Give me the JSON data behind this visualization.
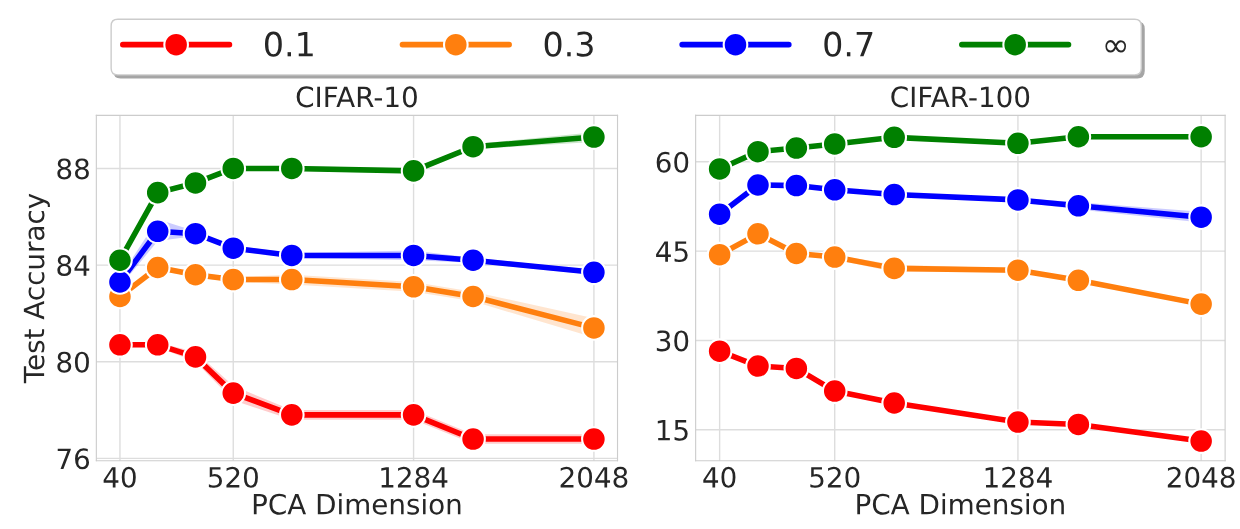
{
  "chart_data": [
    {
      "type": "line",
      "title": "CIFAR-10",
      "xlabel": "PCA Dimension",
      "ylabel": "Test Accuracy",
      "x": [
        40,
        200,
        360,
        520,
        768,
        1284,
        1536,
        2048
      ],
      "xlim": [
        -60,
        2148
      ],
      "xticks": [
        40,
        520,
        1284,
        2048
      ],
      "ylim": [
        75.9,
        90.2
      ],
      "yticks": [
        76,
        80,
        84,
        88
      ],
      "grid": true,
      "legend": "top",
      "marker": "circle",
      "line_style": "solid",
      "series": [
        {
          "name": "0.1",
          "color": "#ff0000",
          "values": [
            80.7,
            80.7,
            80.2,
            78.7,
            77.8,
            77.8,
            76.8,
            76.8
          ],
          "lower": [
            80.6,
            80.6,
            80.0,
            78.4,
            77.6,
            77.6,
            76.6,
            76.6
          ],
          "upper": [
            80.8,
            80.8,
            80.4,
            79.0,
            78.0,
            78.0,
            77.0,
            77.0
          ]
        },
        {
          "name": "0.3",
          "color": "#ff7f0e",
          "values": [
            82.7,
            83.9,
            83.6,
            83.4,
            83.4,
            83.1,
            82.7,
            81.4
          ],
          "lower": [
            82.6,
            83.8,
            83.5,
            83.3,
            83.2,
            82.9,
            82.5,
            81.0
          ],
          "upper": [
            82.8,
            84.0,
            83.7,
            83.5,
            83.6,
            83.3,
            82.9,
            81.8
          ]
        },
        {
          "name": "0.7",
          "color": "#0000ff",
          "values": [
            83.3,
            85.4,
            85.3,
            84.7,
            84.4,
            84.4,
            84.2,
            83.7
          ],
          "lower": [
            83.1,
            85.0,
            85.2,
            84.6,
            84.3,
            84.2,
            84.1,
            83.6
          ],
          "upper": [
            83.5,
            85.9,
            85.4,
            84.8,
            84.5,
            84.6,
            84.3,
            83.8
          ]
        },
        {
          "name": "∞",
          "color": "#008000",
          "values": [
            84.2,
            87.0,
            87.4,
            88.0,
            88.0,
            87.9,
            88.9,
            89.3
          ],
          "lower": [
            84.1,
            86.9,
            87.3,
            87.9,
            87.9,
            87.8,
            88.8,
            89.1
          ],
          "upper": [
            84.3,
            87.1,
            87.5,
            88.1,
            88.1,
            88.0,
            89.0,
            89.5
          ]
        }
      ]
    },
    {
      "type": "line",
      "title": "CIFAR-100",
      "xlabel": "PCA Dimension",
      "x": [
        40,
        200,
        360,
        520,
        768,
        1284,
        1536,
        2048
      ],
      "xlim": [
        -60,
        2148
      ],
      "xticks": [
        40,
        520,
        1284,
        2048
      ],
      "ylim": [
        9.8,
        67.8
      ],
      "yticks": [
        15,
        30,
        45,
        60
      ],
      "grid": true,
      "legend": "top",
      "marker": "circle",
      "line_style": "solid",
      "series": [
        {
          "name": "0.1",
          "color": "#ff0000",
          "values": [
            28.2,
            25.7,
            25.3,
            21.5,
            19.5,
            16.3,
            15.9,
            13.1
          ]
        },
        {
          "name": "0.3",
          "color": "#ff7f0e",
          "values": [
            44.4,
            47.9,
            44.6,
            44.0,
            42.1,
            41.8,
            40.1,
            36.1
          ],
          "lower": [
            44.2,
            47.6,
            44.3,
            43.6,
            41.5,
            41.5,
            39.8,
            35.7
          ],
          "upper": [
            44.6,
            48.2,
            44.9,
            44.4,
            42.7,
            42.1,
            40.4,
            36.5
          ]
        },
        {
          "name": "0.7",
          "color": "#0000ff",
          "values": [
            51.2,
            56.1,
            56.0,
            55.3,
            54.5,
            53.6,
            52.6,
            50.7
          ],
          "lower": [
            51.0,
            55.8,
            55.8,
            55.0,
            54.2,
            53.3,
            52.0,
            49.8
          ],
          "upper": [
            51.4,
            56.4,
            56.2,
            55.6,
            54.8,
            53.9,
            53.2,
            51.6
          ]
        },
        {
          "name": "∞",
          "color": "#008000",
          "values": [
            58.8,
            61.7,
            62.3,
            63.0,
            64.1,
            63.1,
            64.2,
            64.2
          ],
          "lower": [
            58.6,
            61.5,
            62.1,
            62.8,
            63.9,
            62.8,
            63.8,
            63.8
          ],
          "upper": [
            59.0,
            61.9,
            62.5,
            63.2,
            64.3,
            63.4,
            64.6,
            64.6
          ]
        }
      ]
    }
  ]
}
